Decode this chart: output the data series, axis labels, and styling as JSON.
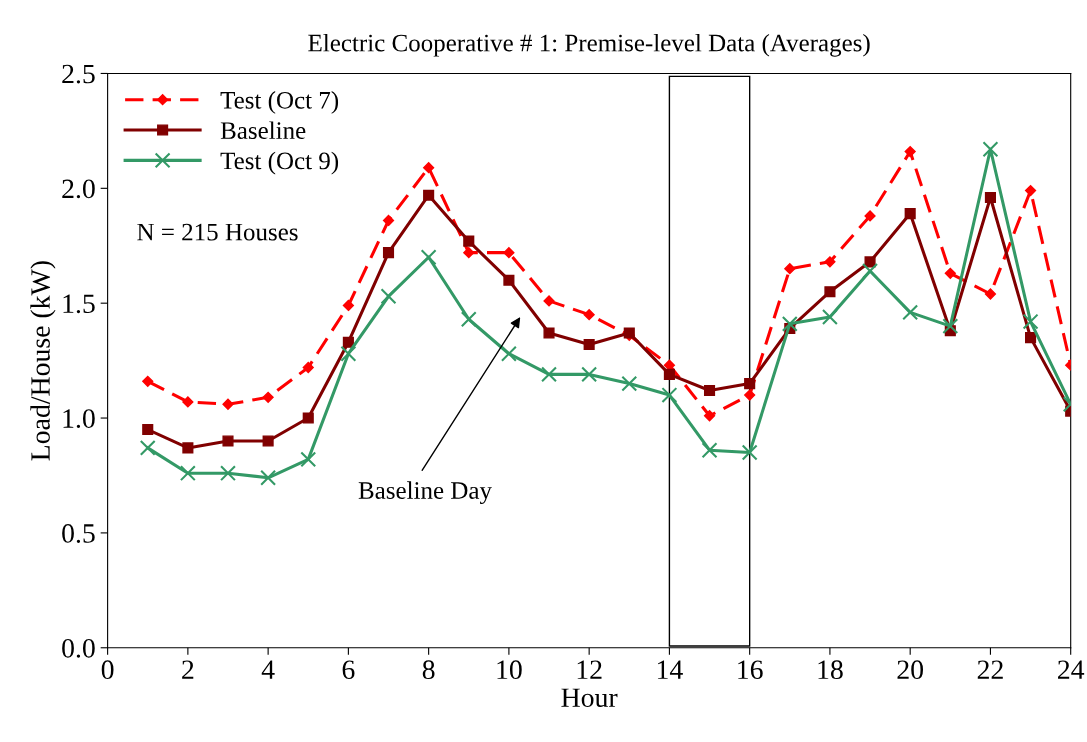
{
  "chart_data": {
    "type": "line",
    "title": "Electric Cooperative # 1: Premise-level Data (Averages)",
    "xlabel": "Hour",
    "ylabel": "Load/House (kW)",
    "x": [
      1,
      2,
      3,
      4,
      5,
      6,
      7,
      8,
      9,
      10,
      11,
      12,
      13,
      14,
      15,
      16,
      17,
      18,
      19,
      20,
      21,
      22,
      23,
      24
    ],
    "series": [
      {
        "name": "Test (Oct 7)",
        "color": "#ff0000",
        "marker": "diamond",
        "line_style": "dashed",
        "values": [
          1.16,
          1.07,
          1.06,
          1.09,
          1.22,
          1.49,
          1.86,
          2.09,
          1.72,
          1.72,
          1.51,
          1.45,
          1.36,
          1.23,
          1.01,
          1.1,
          1.65,
          1.68,
          1.88,
          2.16,
          1.63,
          1.54,
          1.99,
          1.23
        ]
      },
      {
        "name": "Baseline",
        "color": "#800000",
        "marker": "square",
        "line_style": "solid",
        "values": [
          0.95,
          0.87,
          0.9,
          0.9,
          1.0,
          1.33,
          1.72,
          1.97,
          1.77,
          1.6,
          1.37,
          1.32,
          1.37,
          1.19,
          1.12,
          1.15,
          1.39,
          1.55,
          1.68,
          1.89,
          1.38,
          1.96,
          1.35,
          1.03
        ]
      },
      {
        "name": "Test (Oct 9)",
        "color": "#339966",
        "marker": "cross",
        "line_style": "solid",
        "values": [
          0.87,
          0.76,
          0.76,
          0.74,
          0.82,
          1.28,
          1.53,
          1.7,
          1.43,
          1.28,
          1.19,
          1.19,
          1.15,
          1.1,
          0.86,
          0.85,
          1.41,
          1.44,
          1.64,
          1.46,
          1.4,
          2.17,
          1.42,
          1.06
        ]
      }
    ],
    "xlim": [
      0,
      24
    ],
    "xticks": [
      0,
      2,
      4,
      6,
      8,
      10,
      12,
      14,
      16,
      18,
      20,
      22,
      24
    ],
    "ylim": [
      0,
      2.5
    ],
    "yticks": [
      {
        "value": 0,
        "label": "0.0"
      },
      {
        "value": 0.5,
        "label": "0.5"
      },
      {
        "value": 1,
        "label": "1.0"
      },
      {
        "value": 1.5,
        "label": "1.5"
      },
      {
        "value": 2,
        "label": "2.0"
      },
      {
        "value": 2.5,
        "label": "2.5"
      }
    ],
    "bands": [
      {
        "axis": "x",
        "from": 14,
        "to": 16,
        "color": "#ffffff"
      }
    ],
    "annotations": [
      "Baseline Day",
      "N = 215 Houses"
    ],
    "legend": "top left",
    "grid": false
  }
}
